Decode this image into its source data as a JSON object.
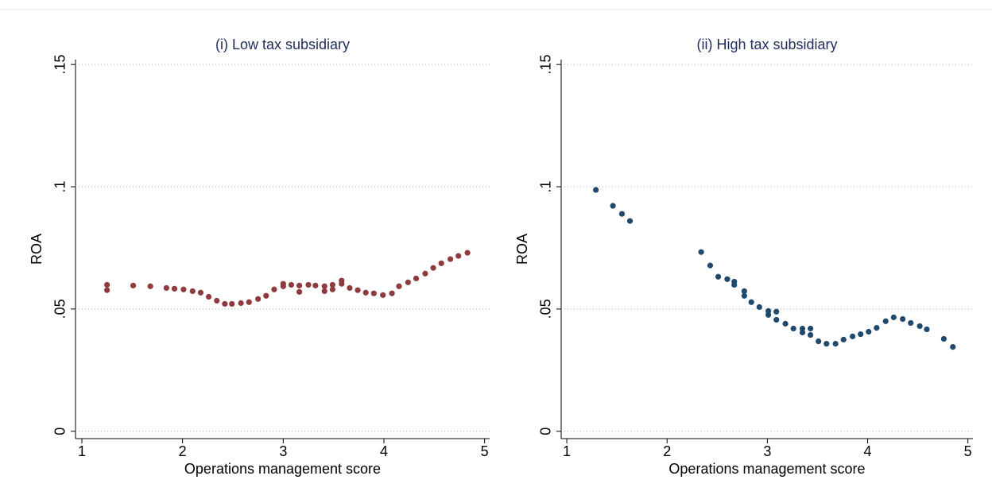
{
  "chart_data": [
    {
      "type": "scatter",
      "title": "(i) Low tax subsidiary",
      "x_label": "Operations management score",
      "y_label": "ROA",
      "color": "#8f3b3e",
      "xlim": [
        0.937,
        5.05
      ],
      "ylim": [
        -0.003,
        0.152
      ],
      "xticks": [
        1,
        2,
        3,
        4,
        5
      ],
      "yticks": [
        0,
        {
          "value": 0.05,
          "label": ".05"
        },
        {
          "value": 0.1,
          "label": ".1"
        },
        {
          "value": 0.15,
          "label": ".15"
        }
      ],
      "grid": true,
      "x": [
        1.25,
        1.25,
        1.51,
        1.68,
        1.84,
        1.92,
        2.01,
        2.1,
        2.18,
        2.26,
        2.34,
        2.42,
        2.49,
        2.58,
        2.66,
        2.75,
        2.83,
        2.91,
        3.0,
        3.0,
        3.08,
        3.16,
        3.16,
        3.25,
        3.32,
        3.41,
        3.41,
        3.49,
        3.49,
        3.58,
        3.58,
        3.66,
        3.74,
        3.82,
        3.9,
        3.99,
        4.08,
        4.15,
        4.24,
        4.32,
        4.41,
        4.49,
        4.57,
        4.66,
        4.74,
        4.83
      ],
      "y": [
        0.0599,
        0.0577,
        0.0596,
        0.0593,
        0.0586,
        0.0583,
        0.058,
        0.0573,
        0.0567,
        0.055,
        0.0534,
        0.0521,
        0.0521,
        0.0524,
        0.0528,
        0.0541,
        0.0554,
        0.058,
        0.0593,
        0.0603,
        0.0599,
        0.0596,
        0.057,
        0.0599,
        0.0596,
        0.0593,
        0.0573,
        0.0599,
        0.058,
        0.0603,
        0.0616,
        0.0586,
        0.0577,
        0.0567,
        0.0564,
        0.0557,
        0.0564,
        0.0593,
        0.0609,
        0.0625,
        0.0645,
        0.0668,
        0.0687,
        0.0704,
        0.0717,
        0.073
      ]
    },
    {
      "type": "scatter",
      "title": "(ii) High tax subsidiary",
      "x_label": "Operations management score",
      "y_label": "ROA",
      "color": "#1f4a6e",
      "xlim": [
        0.944,
        5.05
      ],
      "ylim": [
        -0.003,
        0.152
      ],
      "xticks": [
        1,
        2,
        3,
        4,
        5
      ],
      "yticks": [
        0,
        {
          "value": 0.05,
          "label": ".05"
        },
        {
          "value": 0.1,
          "label": ".1"
        },
        {
          "value": 0.15,
          "label": ".15"
        }
      ],
      "grid": true,
      "x": [
        1.29,
        1.46,
        1.55,
        1.63,
        2.34,
        2.43,
        2.51,
        2.6,
        2.67,
        2.67,
        2.77,
        2.77,
        2.84,
        2.92,
        3.01,
        3.01,
        3.09,
        3.09,
        3.18,
        3.26,
        3.35,
        3.35,
        3.43,
        3.43,
        3.51,
        3.59,
        3.68,
        3.76,
        3.85,
        3.93,
        4.01,
        4.09,
        4.18,
        4.26,
        4.35,
        4.43,
        4.52,
        4.59,
        4.76,
        4.85
      ],
      "y": [
        0.0987,
        0.0922,
        0.0889,
        0.086,
        0.0733,
        0.0678,
        0.0632,
        0.0622,
        0.0612,
        0.0599,
        0.0573,
        0.0554,
        0.0528,
        0.0508,
        0.0492,
        0.0476,
        0.0489,
        0.0456,
        0.044,
        0.042,
        0.042,
        0.0404,
        0.0394,
        0.042,
        0.0368,
        0.0358,
        0.0358,
        0.0375,
        0.0388,
        0.0397,
        0.0407,
        0.0423,
        0.045,
        0.0466,
        0.0459,
        0.0443,
        0.043,
        0.0417,
        0.0378,
        0.0345
      ]
    }
  ]
}
